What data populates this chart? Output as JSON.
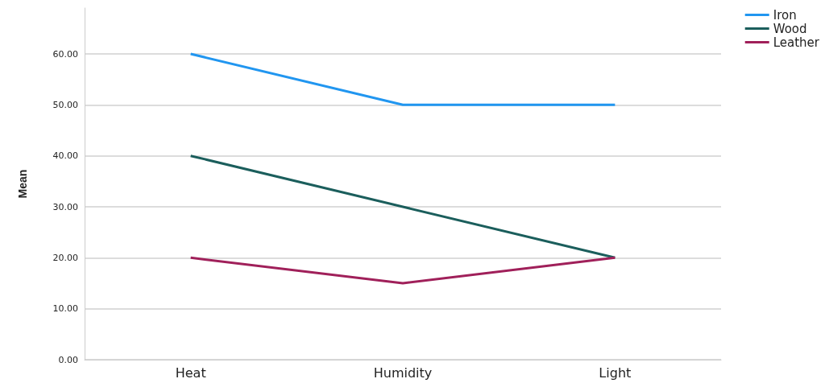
{
  "chart_data": {
    "type": "line",
    "ylabel": "Mean",
    "categories": [
      "Heat",
      "Humidity",
      "Light"
    ],
    "series": [
      {
        "name": "Iron",
        "color": "#2196f0",
        "values": [
          60,
          50,
          50
        ]
      },
      {
        "name": "Wood",
        "color": "#1b5e5c",
        "values": [
          40,
          30,
          20
        ]
      },
      {
        "name": "Leather",
        "color": "#a0205a",
        "values": [
          20,
          15,
          20
        ]
      }
    ],
    "ylim": [
      0,
      69
    ],
    "yticks": [
      {
        "value": 0,
        "label": "0.00"
      },
      {
        "value": 10,
        "label": "10.00"
      },
      {
        "value": 20,
        "label": "20.00"
      },
      {
        "value": 30,
        "label": "30.00"
      },
      {
        "value": 40,
        "label": "40.00"
      },
      {
        "value": 50,
        "label": "50.00"
      },
      {
        "value": 60,
        "label": "60.00"
      }
    ],
    "grid": "y",
    "legend": "top right",
    "marker": "none",
    "line_style": "solid"
  }
}
